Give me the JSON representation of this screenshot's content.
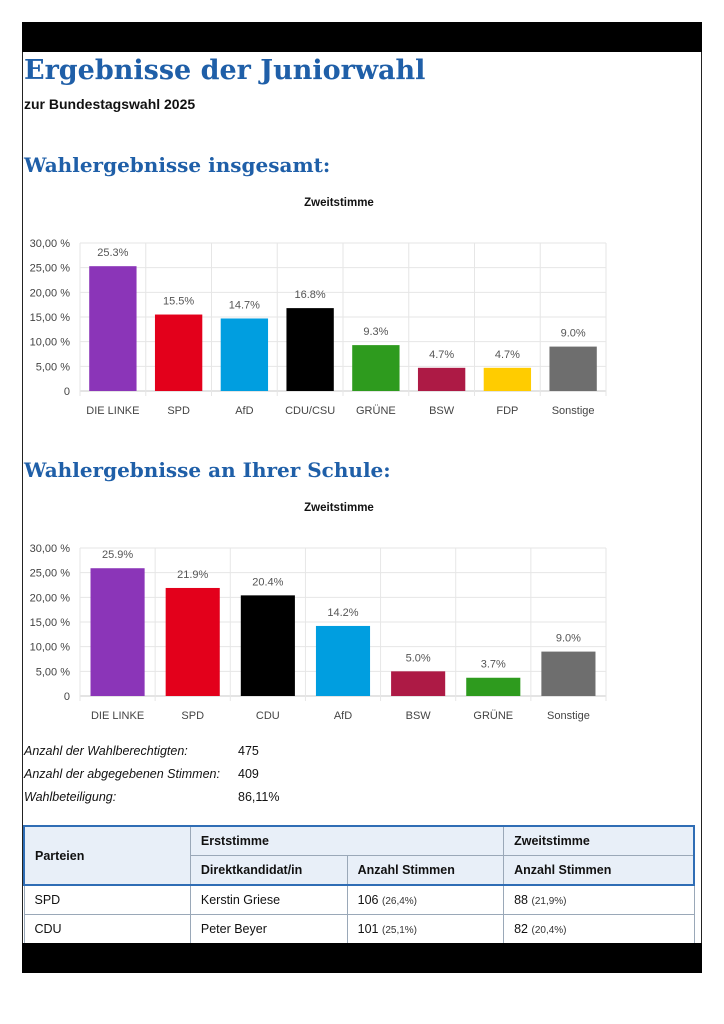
{
  "header": {
    "title": "Ergebnisse der Juniorwahl",
    "subtitle": "zur Bundestagswahl 2025"
  },
  "section_total": {
    "heading": "Wahlergebnisse insgesamt:"
  },
  "section_school": {
    "heading": "Wahlergebnisse an Ihrer Schule:"
  },
  "colors": {
    "linke": "#8b35b8",
    "spd": "#e3001b",
    "afd": "#009ee0",
    "cdu": "#000000",
    "gruene": "#2e9b1e",
    "bsw": "#ad1a45",
    "fdp": "#ffcc00",
    "sonstige": "#6e6e6e",
    "heading": "#1f5fa8"
  },
  "chart_data": [
    {
      "type": "bar",
      "title": "Zweitstimme",
      "categories": [
        "DIE LINKE",
        "SPD",
        "AfD",
        "CDU/CSU",
        "GRÜNE",
        "BSW",
        "FDP",
        "Sonstige"
      ],
      "values": [
        25.3,
        15.5,
        14.7,
        16.8,
        9.3,
        4.7,
        4.7,
        9.0
      ],
      "value_labels": [
        "25.3%",
        "15.5%",
        "14.7%",
        "16.8%",
        "9.3%",
        "4.7%",
        "4.7%",
        "9.0%"
      ],
      "bar_colors": [
        "#8b35b8",
        "#e3001b",
        "#009ee0",
        "#000000",
        "#2e9b1e",
        "#ad1a45",
        "#ffcc00",
        "#6e6e6e"
      ],
      "yticks": [
        "0",
        "5,00 %",
        "10,00 %",
        "15,00 %",
        "20,00 %",
        "25,00 %",
        "30,00 %"
      ],
      "ylim": [
        0,
        30
      ],
      "xlabel": "",
      "ylabel": "",
      "grid": true
    },
    {
      "type": "bar",
      "title": "Zweitstimme",
      "categories": [
        "DIE LINKE",
        "SPD",
        "CDU",
        "AfD",
        "BSW",
        "GRÜNE",
        "Sonstige"
      ],
      "values": [
        25.9,
        21.9,
        20.4,
        14.2,
        5.0,
        3.7,
        9.0
      ],
      "value_labels": [
        "25.9%",
        "21.9%",
        "20.4%",
        "14.2%",
        "5.0%",
        "3.7%",
        "9.0%"
      ],
      "bar_colors": [
        "#8b35b8",
        "#e3001b",
        "#000000",
        "#009ee0",
        "#ad1a45",
        "#2e9b1e",
        "#6e6e6e"
      ],
      "yticks": [
        "0",
        "5,00 %",
        "10,00 %",
        "15,00 %",
        "20,00 %",
        "25,00 %",
        "30,00 %"
      ],
      "ylim": [
        0,
        30
      ],
      "xlabel": "",
      "ylabel": "",
      "grid": true
    }
  ],
  "stats": [
    {
      "label": "Anzahl der Wahlberechtigten:",
      "value": "475"
    },
    {
      "label": "Anzahl der abgegebenen Stimmen:",
      "value": "409"
    },
    {
      "label": "Wahlbeteiligung:",
      "value": "86,11%"
    }
  ],
  "table": {
    "col_parteien": "Parteien",
    "col_erststimme": "Erststimme",
    "col_zweitstimme": "Zweitstimme",
    "col_direktkandidat": "Direktkandidat/in",
    "col_anzahl_erst": "Anzahl Stimmen",
    "col_anzahl_zweit": "Anzahl Stimmen",
    "rows": [
      {
        "partei": "SPD",
        "kandidat": "Kerstin Griese",
        "erst": "106",
        "erst_pct": "(26,4%)",
        "zweit": "88",
        "zweit_pct": "(21,9%)"
      },
      {
        "partei": "CDU",
        "kandidat": "Peter Beyer",
        "erst": "101",
        "erst_pct": "(25,1%)",
        "zweit": "82",
        "zweit_pct": "(20,4%)"
      }
    ]
  }
}
